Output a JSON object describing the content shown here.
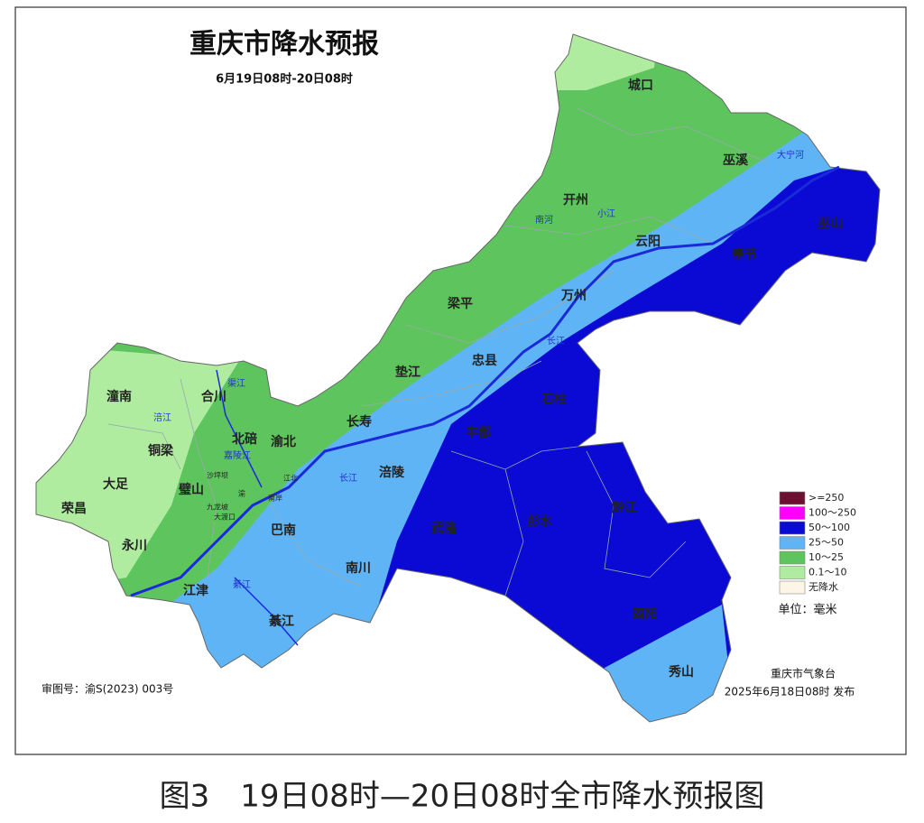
{
  "title": "重庆市降水预报",
  "subtitle": "6月19日08时-20日08时",
  "districts": [
    "城口",
    "巫溪",
    "开州",
    "云阳",
    "巫山",
    "奉节",
    "梁平",
    "万州",
    "垫江",
    "忠县",
    "长寿",
    "石柱",
    "潼南",
    "合川",
    "铜梁",
    "北碚",
    "渝北",
    "大足",
    "璧山",
    "荣昌",
    "涪陵",
    "丰都",
    "巴南",
    "永川",
    "武隆",
    "彭水",
    "黔江",
    "南川",
    "江津",
    "綦江",
    "酉阳",
    "秀山"
  ],
  "central_districts": [
    "沙坪坝",
    "九龙坡",
    "大渡口",
    "南岸",
    "江北",
    "渝"
  ],
  "rivers": [
    "大宁河",
    "南河",
    "小江",
    "长江",
    "长江",
    "涪江",
    "渠江",
    "嘉陵江",
    "綦江"
  ],
  "legend": {
    "items": [
      {
        "label": ">=250",
        "color": "#6b1030"
      },
      {
        "label": "100～250",
        "color": "#ff00ff"
      },
      {
        "label": "50～100",
        "color": "#0a0ad4"
      },
      {
        "label": "25～50",
        "color": "#5fb4f5"
      },
      {
        "label": "10～25",
        "color": "#5ec45e"
      },
      {
        "label": "0.1～10",
        "color": "#b0eca0"
      },
      {
        "label": "无降水",
        "color": "#fdf5e6"
      }
    ],
    "unit": "单位：毫米"
  },
  "publisher": {
    "name": "重庆市气象台",
    "time": "2025年6月18日08时 发布"
  },
  "approval_number": "审图号：渝S(2023) 003号",
  "caption": "图3　19日08时—20日08时全市降水预报图"
}
